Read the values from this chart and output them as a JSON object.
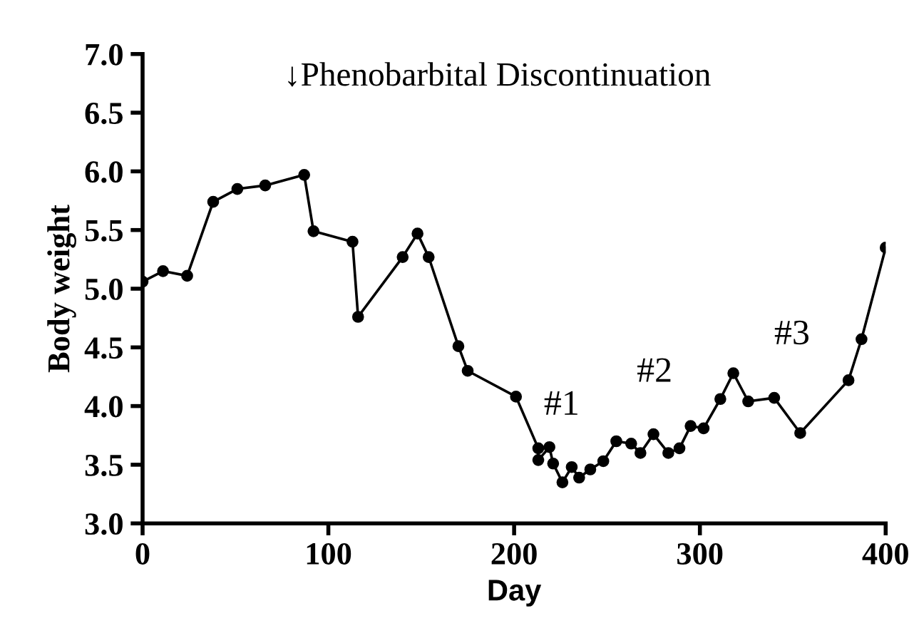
{
  "chart_data": {
    "type": "line",
    "xlabel": "Day",
    "ylabel": "Body weight",
    "x": [
      0,
      11,
      24,
      38,
      51,
      66,
      87,
      92,
      113,
      116,
      140,
      148,
      154,
      170,
      175,
      201,
      213,
      213,
      219,
      221,
      226,
      231,
      235,
      241,
      248,
      255,
      263,
      268,
      275,
      283,
      289,
      295,
      302,
      311,
      318,
      326,
      340,
      354,
      380,
      387,
      400
    ],
    "series": [
      {
        "color": "#000000",
        "values": [
          5.06,
          5.15,
          5.11,
          5.74,
          5.85,
          5.88,
          5.97,
          5.49,
          5.4,
          4.76,
          5.27,
          5.47,
          5.27,
          4.51,
          4.3,
          4.08,
          3.64,
          3.54,
          3.65,
          3.51,
          3.35,
          3.48,
          3.39,
          3.46,
          3.53,
          3.7,
          3.68,
          3.6,
          3.76,
          3.6,
          3.64,
          3.83,
          3.81,
          4.06,
          4.28,
          4.04,
          4.07,
          3.77,
          4.22,
          4.57,
          5.35
        ]
      }
    ],
    "marker": "circle",
    "line_style": "solid",
    "grid": false,
    "xlim": [
      0,
      400
    ],
    "xticks": [
      0,
      100,
      200,
      300,
      400
    ],
    "ylim": [
      3,
      7
    ],
    "yticks": [
      {
        "value": 3,
        "label": "3.0"
      },
      {
        "value": 3.5,
        "label": "3.5"
      },
      {
        "value": 4,
        "label": "4.0"
      },
      {
        "value": 4.5,
        "label": "4.5"
      },
      {
        "value": 5,
        "label": "5.0"
      },
      {
        "value": 5.5,
        "label": "5.5"
      },
      {
        "value": 6,
        "label": "6.0"
      },
      {
        "value": 6.5,
        "label": "6.5"
      },
      {
        "value": 7,
        "label": "7.0"
      }
    ],
    "annotations": [
      "↓Phenobarbital Discontinuation",
      "#1",
      "#2",
      "#3"
    ]
  }
}
